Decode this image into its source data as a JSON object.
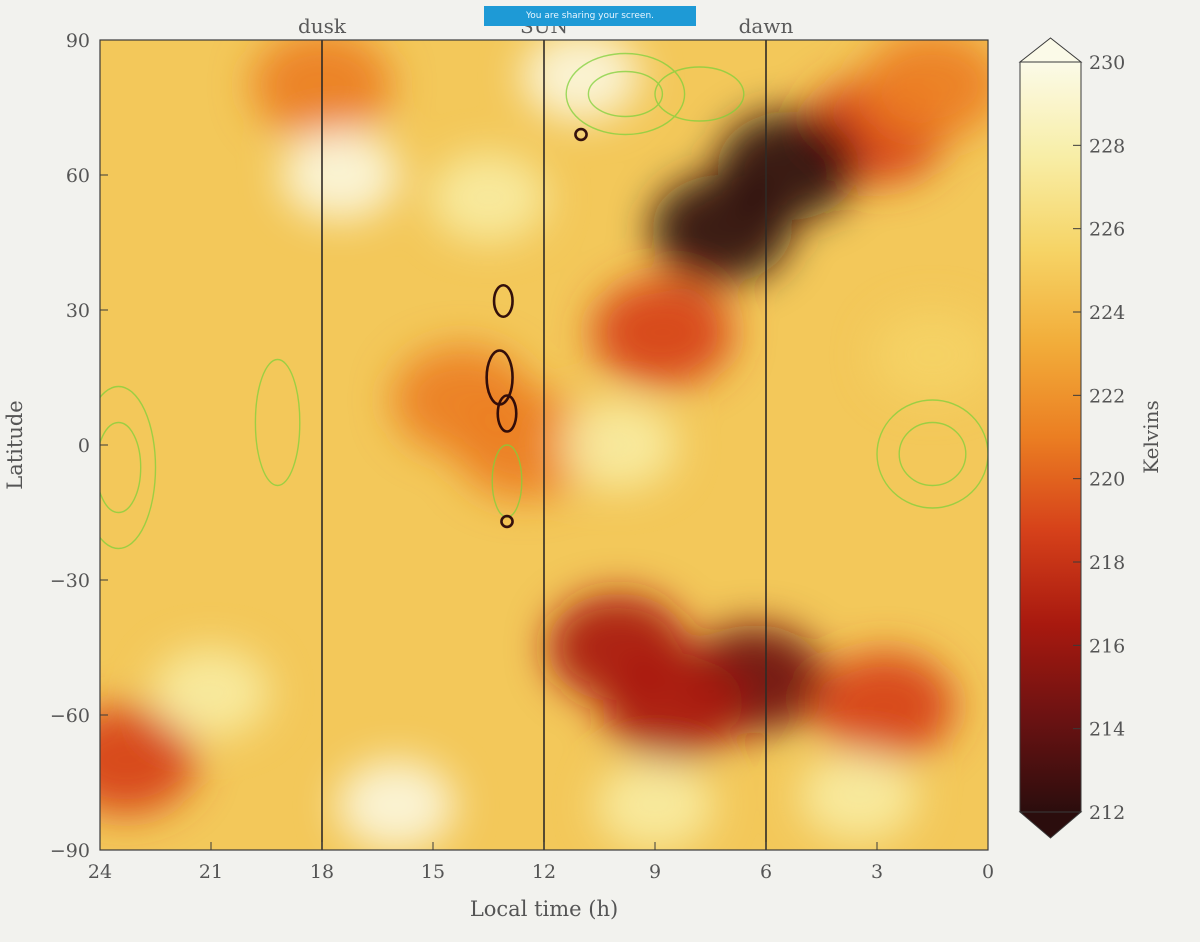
{
  "screen_share_banner": "You are sharing your screen.",
  "chart_data": {
    "type": "heatmap",
    "title": "",
    "xlabel": "Local time (h)",
    "ylabel": "Latitude",
    "xlim": [
      24,
      0
    ],
    "ylim": [
      -90,
      90
    ],
    "x_ticks": [
      24,
      21,
      18,
      15,
      12,
      9,
      6,
      3,
      0
    ],
    "y_ticks": [
      90,
      60,
      30,
      0,
      -30,
      -60,
      -90
    ],
    "y_tick_labels": [
      "90",
      "60",
      "30",
      "0",
      "−30",
      "−60",
      "−90"
    ],
    "grid": false,
    "vertical_lines": [
      {
        "x": 18,
        "label": "dusk"
      },
      {
        "x": 12,
        "label": "SUN"
      },
      {
        "x": 6,
        "label": "dawn"
      }
    ],
    "colorbar": {
      "label": "Kelvins",
      "min": 212,
      "max": 230,
      "ticks": [
        230,
        228,
        226,
        224,
        222,
        220,
        218,
        216,
        214,
        212
      ],
      "extend": "both",
      "colors": [
        "#2b0d0d",
        "#6b1212",
        "#a8190f",
        "#d6411a",
        "#eb7e22",
        "#f2ad3a",
        "#f6d466",
        "#f8eea7",
        "#fbfae8"
      ]
    },
    "temperature_features": [
      {
        "x": 3.0,
        "y": 70,
        "value": 218,
        "kind": "cold"
      },
      {
        "x": 5.4,
        "y": 62,
        "value": 213,
        "kind": "cold"
      },
      {
        "x": 7.2,
        "y": 48,
        "value": 213,
        "kind": "cold"
      },
      {
        "x": 8.8,
        "y": 25,
        "value": 219,
        "kind": "cold"
      },
      {
        "x": 14.2,
        "y": 10,
        "value": 220,
        "kind": "cold"
      },
      {
        "x": 12.5,
        "y": 0,
        "value": 221,
        "kind": "cold"
      },
      {
        "x": 10.0,
        "y": -45,
        "value": 217,
        "kind": "cold"
      },
      {
        "x": 6.3,
        "y": -52,
        "value": 214,
        "kind": "cold"
      },
      {
        "x": 8.5,
        "y": -58,
        "value": 217,
        "kind": "cold"
      },
      {
        "x": 2.8,
        "y": -58,
        "value": 218,
        "kind": "cold"
      },
      {
        "x": 23.3,
        "y": -70,
        "value": 218,
        "kind": "cold"
      },
      {
        "x": 18.0,
        "y": 80,
        "value": 220,
        "kind": "cold"
      },
      {
        "x": 1.5,
        "y": 80,
        "value": 222,
        "kind": "cold"
      },
      {
        "x": 17.5,
        "y": 60,
        "value": 229,
        "kind": "warm"
      },
      {
        "x": 13.5,
        "y": 55,
        "value": 228,
        "kind": "warm"
      },
      {
        "x": 11.0,
        "y": 82,
        "value": 229,
        "kind": "warm"
      },
      {
        "x": 16.0,
        "y": -80,
        "value": 229,
        "kind": "warm"
      },
      {
        "x": 9.0,
        "y": -80,
        "value": 228,
        "kind": "warm"
      },
      {
        "x": 3.5,
        "y": -78,
        "value": 228,
        "kind": "warm"
      },
      {
        "x": 21.0,
        "y": -55,
        "value": 228,
        "kind": "warm"
      },
      {
        "x": 10.0,
        "y": 0,
        "value": 227,
        "kind": "warm"
      },
      {
        "x": 1.5,
        "y": 20,
        "value": 226,
        "kind": "warm"
      }
    ],
    "contour_series": [
      {
        "color": "#7fd13b",
        "rings": [
          {
            "x": 9.8,
            "y": 78,
            "rx": 1.6,
            "ry": 9
          },
          {
            "x": 9.8,
            "y": 78,
            "rx": 1.0,
            "ry": 5
          },
          {
            "x": 7.8,
            "y": 78,
            "rx": 1.2,
            "ry": 6
          },
          {
            "x": 23.5,
            "y": -5,
            "rx": 1.0,
            "ry": 18
          },
          {
            "x": 23.5,
            "y": -5,
            "rx": 0.6,
            "ry": 10
          },
          {
            "x": 1.5,
            "y": -2,
            "rx": 1.5,
            "ry": 12
          },
          {
            "x": 1.5,
            "y": -2,
            "rx": 0.9,
            "ry": 7
          },
          {
            "x": 13.0,
            "y": -8,
            "rx": 0.4,
            "ry": 8
          },
          {
            "x": 19.2,
            "y": 5,
            "rx": 0.6,
            "ry": 14
          }
        ]
      },
      {
        "color": "#2a0708",
        "rings": [
          {
            "x": 13.1,
            "y": 32,
            "rx": 0.25,
            "ry": 3.5
          },
          {
            "x": 13.2,
            "y": 15,
            "rx": 0.35,
            "ry": 6
          },
          {
            "x": 13.0,
            "y": 7,
            "rx": 0.25,
            "ry": 4
          },
          {
            "x": 13.0,
            "y": -17,
            "rx": 0.15,
            "ry": 1.2
          },
          {
            "x": 11.0,
            "y": 69,
            "rx": 0.15,
            "ry": 1.2
          }
        ]
      }
    ]
  }
}
